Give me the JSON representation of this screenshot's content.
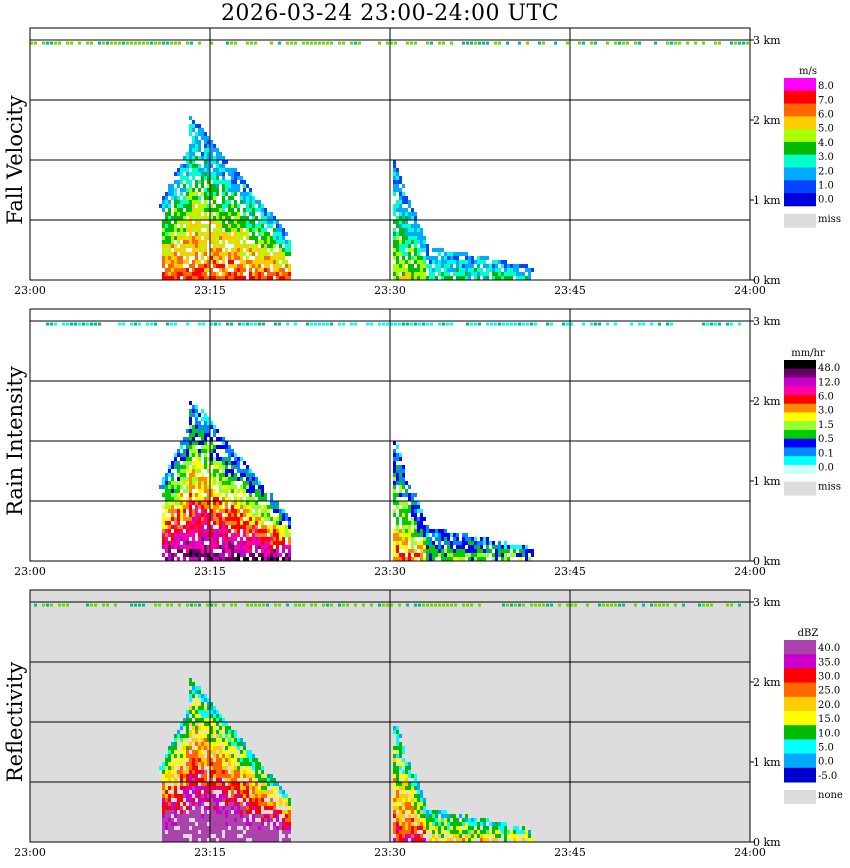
{
  "title": "2026-03-24   23:00-24:00 UTC",
  "chart_data": [
    {
      "type": "heatmap",
      "title": "Fall Velocity",
      "x_ticks": [
        "23:00",
        "23:15",
        "23:30",
        "23:45",
        "24:00"
      ],
      "y_ticks": [
        "0 km",
        "1 km",
        "2 km",
        "3 km"
      ],
      "xlim": [
        "23:00",
        "24:00"
      ],
      "ylim": [
        0,
        3
      ],
      "background": "#ffffff",
      "colorbar": {
        "unit": "m/s",
        "labels": [
          "8.0",
          "7.0",
          "6.0",
          "5.0",
          "4.0",
          "3.0",
          "2.0",
          "1.0",
          "0.0"
        ],
        "colors": [
          "#ff00ff",
          "#ff0000",
          "#ff6600",
          "#ffcc00",
          "#aaff00",
          "#00bb00",
          "#00ffcc",
          "#00aaff",
          "#0044ff",
          "#0000dd"
        ],
        "missing_label": "miss",
        "missing_color": "#dddddd"
      }
    },
    {
      "type": "heatmap",
      "title": "Rain Intensity",
      "x_ticks": [
        "23:00",
        "23:15",
        "23:30",
        "23:45",
        "24:00"
      ],
      "y_ticks": [
        "0 km",
        "1 km",
        "2 km",
        "3 km"
      ],
      "xlim": [
        "23:00",
        "24:00"
      ],
      "ylim": [
        0,
        3
      ],
      "background": "#ffffff",
      "colorbar": {
        "unit": "mm/hr",
        "labels": [
          "48.0",
          "12.0",
          "6.0",
          "3.0",
          "1.5",
          "0.5",
          "0.1",
          "0.0"
        ],
        "colors": [
          "#000000",
          "#660066",
          "#cc00cc",
          "#ff00aa",
          "#ff0000",
          "#ff8800",
          "#ffff00",
          "#99ff33",
          "#00cc00",
          "#0000ff",
          "#0088ff",
          "#00ffff",
          "#ccffff"
        ],
        "missing_label": "miss",
        "missing_color": "#dddddd"
      }
    },
    {
      "type": "heatmap",
      "title": "Reflectivity",
      "x_ticks": [
        "23:00",
        "23:15",
        "23:30",
        "23:45",
        "24:00"
      ],
      "y_ticks": [
        "0 km",
        "1 km",
        "2 km",
        "3 km"
      ],
      "xlim": [
        "23:00",
        "24:00"
      ],
      "ylim": [
        0,
        3
      ],
      "background": "#dddddd",
      "colorbar": {
        "unit": "dBZ",
        "labels": [
          "40.0",
          "35.0",
          "30.0",
          "25.0",
          "20.0",
          "15.0",
          "10.0",
          "5.0",
          "0.0",
          "-5.0"
        ],
        "colors": [
          "#aa44aa",
          "#cc00cc",
          "#ff0000",
          "#ff6600",
          "#ffcc00",
          "#ffff00",
          "#00bb00",
          "#00ffff",
          "#00aaff",
          "#0000cc"
        ],
        "missing_label": "none",
        "missing_color": "#dddddd"
      }
    }
  ]
}
